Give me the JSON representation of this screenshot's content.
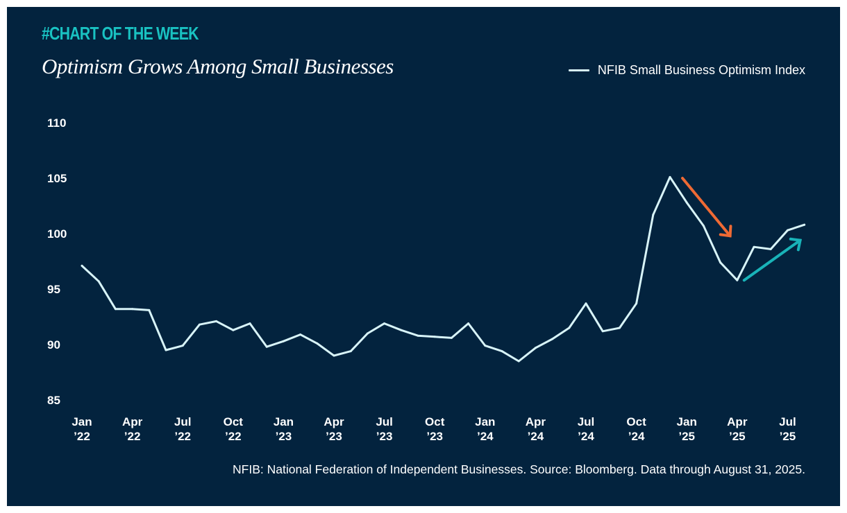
{
  "header": {
    "tag": "#CHART OF THE WEEK",
    "title": "Optimism Grows Among Small Businesses"
  },
  "footnote": "NFIB: National Federation of Independent Businesses. Source: Bloomberg. Data through August 31, 2025.",
  "colors": {
    "background": "#03233e",
    "line": "#d8f4f8",
    "tag": "#19c2c2",
    "arrow_down": "#ef6a34",
    "arrow_up": "#19b3b8"
  },
  "chart_data": {
    "type": "line",
    "title": "Optimism Grows Among Small Businesses",
    "xlabel": "",
    "ylabel": "",
    "ylim": [
      85,
      110
    ],
    "yticks": [
      85,
      90,
      95,
      100,
      105,
      110
    ],
    "grid": false,
    "legend": "top-right",
    "x_tick_labels": [
      [
        "Jan",
        "’22"
      ],
      [
        "Apr",
        "’22"
      ],
      [
        "Jul",
        "’22"
      ],
      [
        "Oct",
        "’22"
      ],
      [
        "Jan",
        "’23"
      ],
      [
        "Apr",
        "’23"
      ],
      [
        "Jul",
        "’23"
      ],
      [
        "Oct",
        "’23"
      ],
      [
        "Jan",
        "’24"
      ],
      [
        "Apr",
        "’24"
      ],
      [
        "Jul",
        "’24"
      ],
      [
        "Oct",
        "’24"
      ],
      [
        "Jan",
        "’25"
      ],
      [
        "Apr",
        "’25"
      ],
      [
        "Jul",
        "’25"
      ]
    ],
    "series": [
      {
        "name": "NFIB Small Business Optimism Index",
        "x": [
          "2022-01",
          "2022-02",
          "2022-03",
          "2022-04",
          "2022-05",
          "2022-06",
          "2022-07",
          "2022-08",
          "2022-09",
          "2022-10",
          "2022-11",
          "2022-12",
          "2023-01",
          "2023-02",
          "2023-03",
          "2023-04",
          "2023-05",
          "2023-06",
          "2023-07",
          "2023-08",
          "2023-09",
          "2023-10",
          "2023-11",
          "2023-12",
          "2024-01",
          "2024-02",
          "2024-03",
          "2024-04",
          "2024-05",
          "2024-06",
          "2024-07",
          "2024-08",
          "2024-09",
          "2024-10",
          "2024-11",
          "2024-12",
          "2025-01",
          "2025-02",
          "2025-03",
          "2025-04",
          "2025-05",
          "2025-06",
          "2025-07",
          "2025-08"
        ],
        "values": [
          97.1,
          95.7,
          93.2,
          93.2,
          93.1,
          89.5,
          89.9,
          91.8,
          92.1,
          91.3,
          91.9,
          89.8,
          90.3,
          90.9,
          90.1,
          89.0,
          89.4,
          91.0,
          91.9,
          91.3,
          90.8,
          90.7,
          90.6,
          91.9,
          89.9,
          89.4,
          88.5,
          89.7,
          90.5,
          91.5,
          93.7,
          91.2,
          91.5,
          93.7,
          101.7,
          105.1,
          102.8,
          100.7,
          97.4,
          95.8,
          98.8,
          98.6,
          100.3,
          100.8
        ]
      }
    ],
    "annotations": [
      {
        "type": "arrow",
        "direction": "down",
        "from": [
          "2024-12",
          105.0
        ],
        "to": [
          "2025-03",
          99.8
        ]
      },
      {
        "type": "arrow",
        "direction": "up",
        "from": [
          "2025-04",
          95.8
        ],
        "to": [
          "2025-08",
          99.4
        ]
      }
    ]
  }
}
